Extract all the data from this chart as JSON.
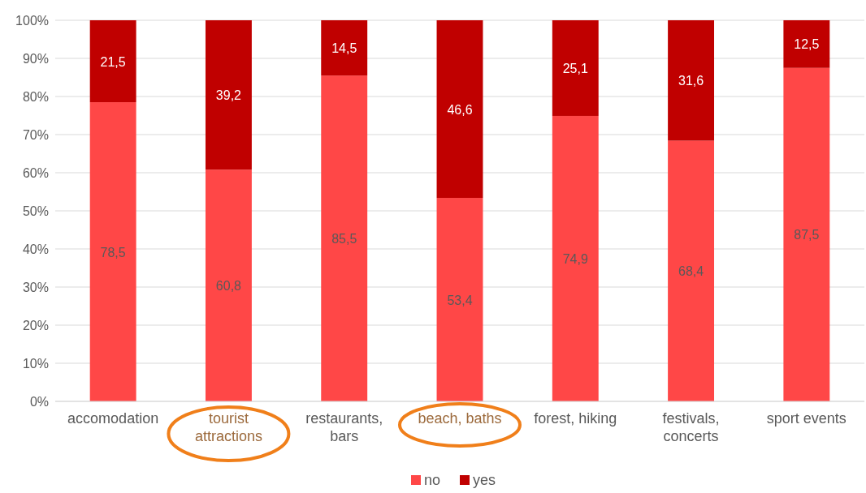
{
  "chart_data": {
    "type": "bar",
    "stacked": true,
    "categories": [
      "accomodation",
      "tourist attractions",
      "restaurants, bars",
      "beach, baths",
      "forest, hiking",
      "festivals, concerts",
      "sport events"
    ],
    "series": [
      {
        "name": "no",
        "color": "#ff4747",
        "values": [
          78.5,
          60.8,
          85.5,
          53.4,
          74.9,
          68.4,
          87.5
        ],
        "value_labels": [
          "78,5",
          "60,8",
          "85,5",
          "53,4",
          "74,9",
          "68,4",
          "87,5"
        ]
      },
      {
        "name": "yes",
        "color": "#c00000",
        "values": [
          21.5,
          39.2,
          14.5,
          46.6,
          25.1,
          31.6,
          12.5
        ],
        "value_labels": [
          "21,5",
          "39,2",
          "14,5",
          "46,6",
          "25,1",
          "31,6",
          "12,5"
        ]
      }
    ],
    "ylim": [
      0,
      100
    ],
    "yticks": [
      {
        "value": 0,
        "label": "0%"
      },
      {
        "value": 10,
        "label": "10%"
      },
      {
        "value": 20,
        "label": "20%"
      },
      {
        "value": 30,
        "label": "30%"
      },
      {
        "value": 40,
        "label": "40%"
      },
      {
        "value": 50,
        "label": "50%"
      },
      {
        "value": 60,
        "label": "60%"
      },
      {
        "value": 70,
        "label": "70%"
      },
      {
        "value": 80,
        "label": "80%"
      },
      {
        "value": 90,
        "label": "90%"
      },
      {
        "value": 100,
        "label": "100%"
      }
    ],
    "grid": "y",
    "legend": "bottom"
  }
}
